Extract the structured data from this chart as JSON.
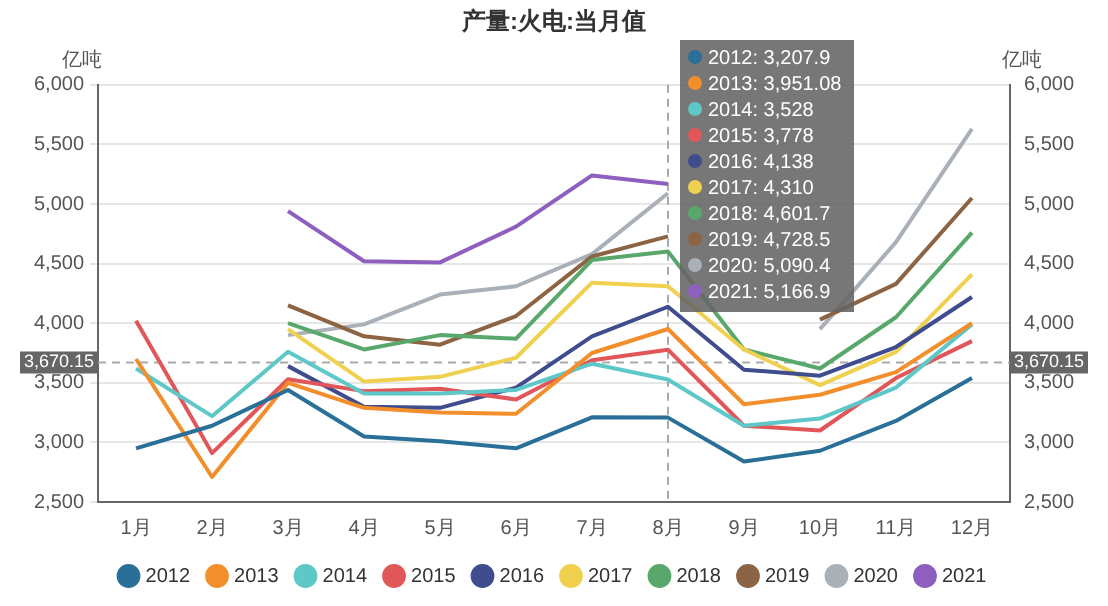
{
  "chart_data": {
    "type": "line",
    "title": "产量:火电:当月值",
    "ylabel": "亿吨",
    "y2label": "亿吨",
    "categories": [
      "1月",
      "2月",
      "3月",
      "4月",
      "5月",
      "6月",
      "7月",
      "8月",
      "9月",
      "10月",
      "11月",
      "12月"
    ],
    "series": [
      {
        "name": "2012",
        "color": "#2a6f97",
        "values": [
          2950,
          3140,
          3440,
          3050,
          3010,
          2950,
          3210,
          3207.9,
          2840,
          2930,
          3180,
          3540
        ]
      },
      {
        "name": "2013",
        "color": "#f28e2b",
        "values": [
          3700,
          2710,
          3500,
          3290,
          3250,
          3240,
          3750,
          3951.08,
          3320,
          3400,
          3590,
          4000
        ]
      },
      {
        "name": "2014",
        "color": "#5ec8c8",
        "values": [
          3620,
          3220,
          3760,
          3410,
          3410,
          3440,
          3660,
          3528,
          3140,
          3200,
          3460,
          3990
        ]
      },
      {
        "name": "2015",
        "color": "#e15759",
        "values": [
          4020,
          2910,
          3530,
          3430,
          3450,
          3360,
          3690,
          3778,
          3140,
          3100,
          3540,
          3850
        ]
      },
      {
        "name": "2016",
        "color": "#3f4d8f",
        "values": [
          null,
          null,
          3640,
          3300,
          3290,
          3460,
          3890,
          4138,
          3610,
          3560,
          3800,
          4220
        ]
      },
      {
        "name": "2017",
        "color": "#f0d04f",
        "values": [
          null,
          null,
          3950,
          3510,
          3550,
          3710,
          4340,
          4310,
          3780,
          3480,
          3760,
          4410
        ]
      },
      {
        "name": "2018",
        "color": "#59a86b",
        "values": [
          null,
          null,
          4000,
          3780,
          3900,
          3870,
          4530,
          4601.7,
          3780,
          3620,
          4050,
          4760
        ]
      },
      {
        "name": "2019",
        "color": "#8c6444",
        "values": [
          null,
          null,
          4150,
          3890,
          3820,
          4060,
          4560,
          4728.5,
          null,
          4030,
          4330,
          5050
        ]
      },
      {
        "name": "2020",
        "color": "#a9b0b8",
        "values": [
          null,
          null,
          3900,
          3990,
          4240,
          4310,
          4580,
          5090.4,
          null,
          3950,
          4680,
          5630
        ]
      },
      {
        "name": "2021",
        "color": "#8e5fbf",
        "values": [
          null,
          null,
          4940,
          4520,
          4510,
          4810,
          5240,
          5166.9,
          null,
          null,
          null,
          null
        ]
      }
    ],
    "ylim": [
      2500,
      6000
    ],
    "yticks": [
      {
        "value": 2500,
        "label": "2,500"
      },
      {
        "value": 3000,
        "label": "3,000"
      },
      {
        "value": 3500,
        "label": "3,500"
      },
      {
        "value": 4000,
        "label": "4,000"
      },
      {
        "value": 4500,
        "label": "4,500"
      },
      {
        "value": 5000,
        "label": "5,000"
      },
      {
        "value": 5500,
        "label": "5,500"
      },
      {
        "value": 6000,
        "label": "6,000"
      }
    ],
    "y2lim": [
      2500,
      6000
    ],
    "y2ticks": [
      {
        "value": 2500,
        "label": "2,500"
      },
      {
        "value": 3000,
        "label": "3,000"
      },
      {
        "value": 3500,
        "label": "3,500"
      },
      {
        "value": 4000,
        "label": "4,000"
      },
      {
        "value": 4500,
        "label": "4,500"
      },
      {
        "value": 5000,
        "label": "5,000"
      },
      {
        "value": 5500,
        "label": "5,500"
      },
      {
        "value": 6000,
        "label": "6,000"
      }
    ],
    "ref_lines": [
      {
        "axis": "y",
        "value": 3670.15,
        "label": "3,670.15",
        "line_style": "dashed"
      },
      {
        "axis": "x",
        "value": "8月",
        "line_style": "dashed"
      }
    ],
    "annotations": [
      "2012: 3,207.9",
      "2013: 3,951.08",
      "2014: 3,528",
      "2015: 3,778",
      "2016: 4,138",
      "2017: 4,310",
      "2018: 4,601.7",
      "2019: 4,728.5",
      "2020: 5,090.4",
      "2021: 5,166.9"
    ],
    "grid": "y",
    "legend": "bottom",
    "marker": "none",
    "line_style": "solid"
  }
}
